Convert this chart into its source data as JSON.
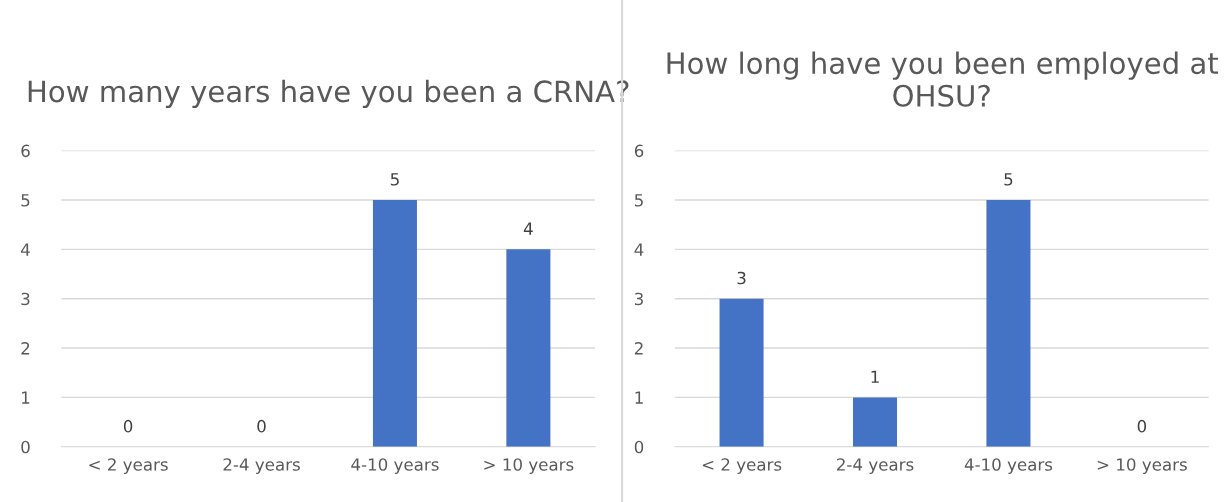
{
  "chart_data": [
    {
      "type": "bar",
      "title": "How many years have you been a CRNA?",
      "categories": [
        "< 2 years",
        "2-4 years",
        "4-10 years",
        "> 10 years"
      ],
      "values": [
        0,
        0,
        5,
        4
      ],
      "color": "#4472c4",
      "ylim": [
        0,
        6
      ],
      "yticks": [
        0,
        1,
        2,
        3,
        4,
        5,
        6
      ],
      "grid": "y",
      "data_labels": true
    },
    {
      "type": "bar",
      "title": "How long have you been employed at OHSU?",
      "categories": [
        "< 2 years",
        "2-4 years",
        "4-10 years",
        "> 10 years"
      ],
      "values": [
        3,
        1,
        5,
        0
      ],
      "color": "#4472c4",
      "ylim": [
        0,
        6
      ],
      "yticks": [
        0,
        1,
        2,
        3,
        4,
        5,
        6
      ],
      "grid": "y",
      "data_labels": true
    }
  ]
}
